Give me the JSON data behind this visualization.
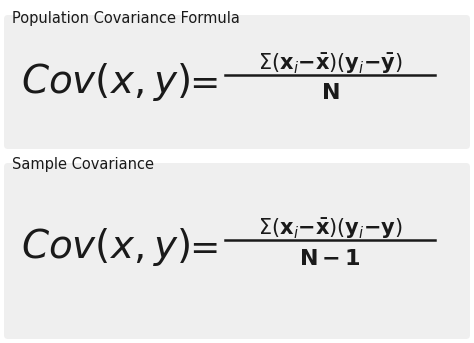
{
  "bg_color": "#ffffff",
  "box_color": "#efefef",
  "title1": "Population Covariance Formula",
  "title2": "Sample Covariance",
  "text_color": "#1a1a1a",
  "title_fontsize": 10.5,
  "lhs_fontsize": 28,
  "eq_fontsize": 26,
  "num_fontsize": 15,
  "den_fontsize": 16
}
